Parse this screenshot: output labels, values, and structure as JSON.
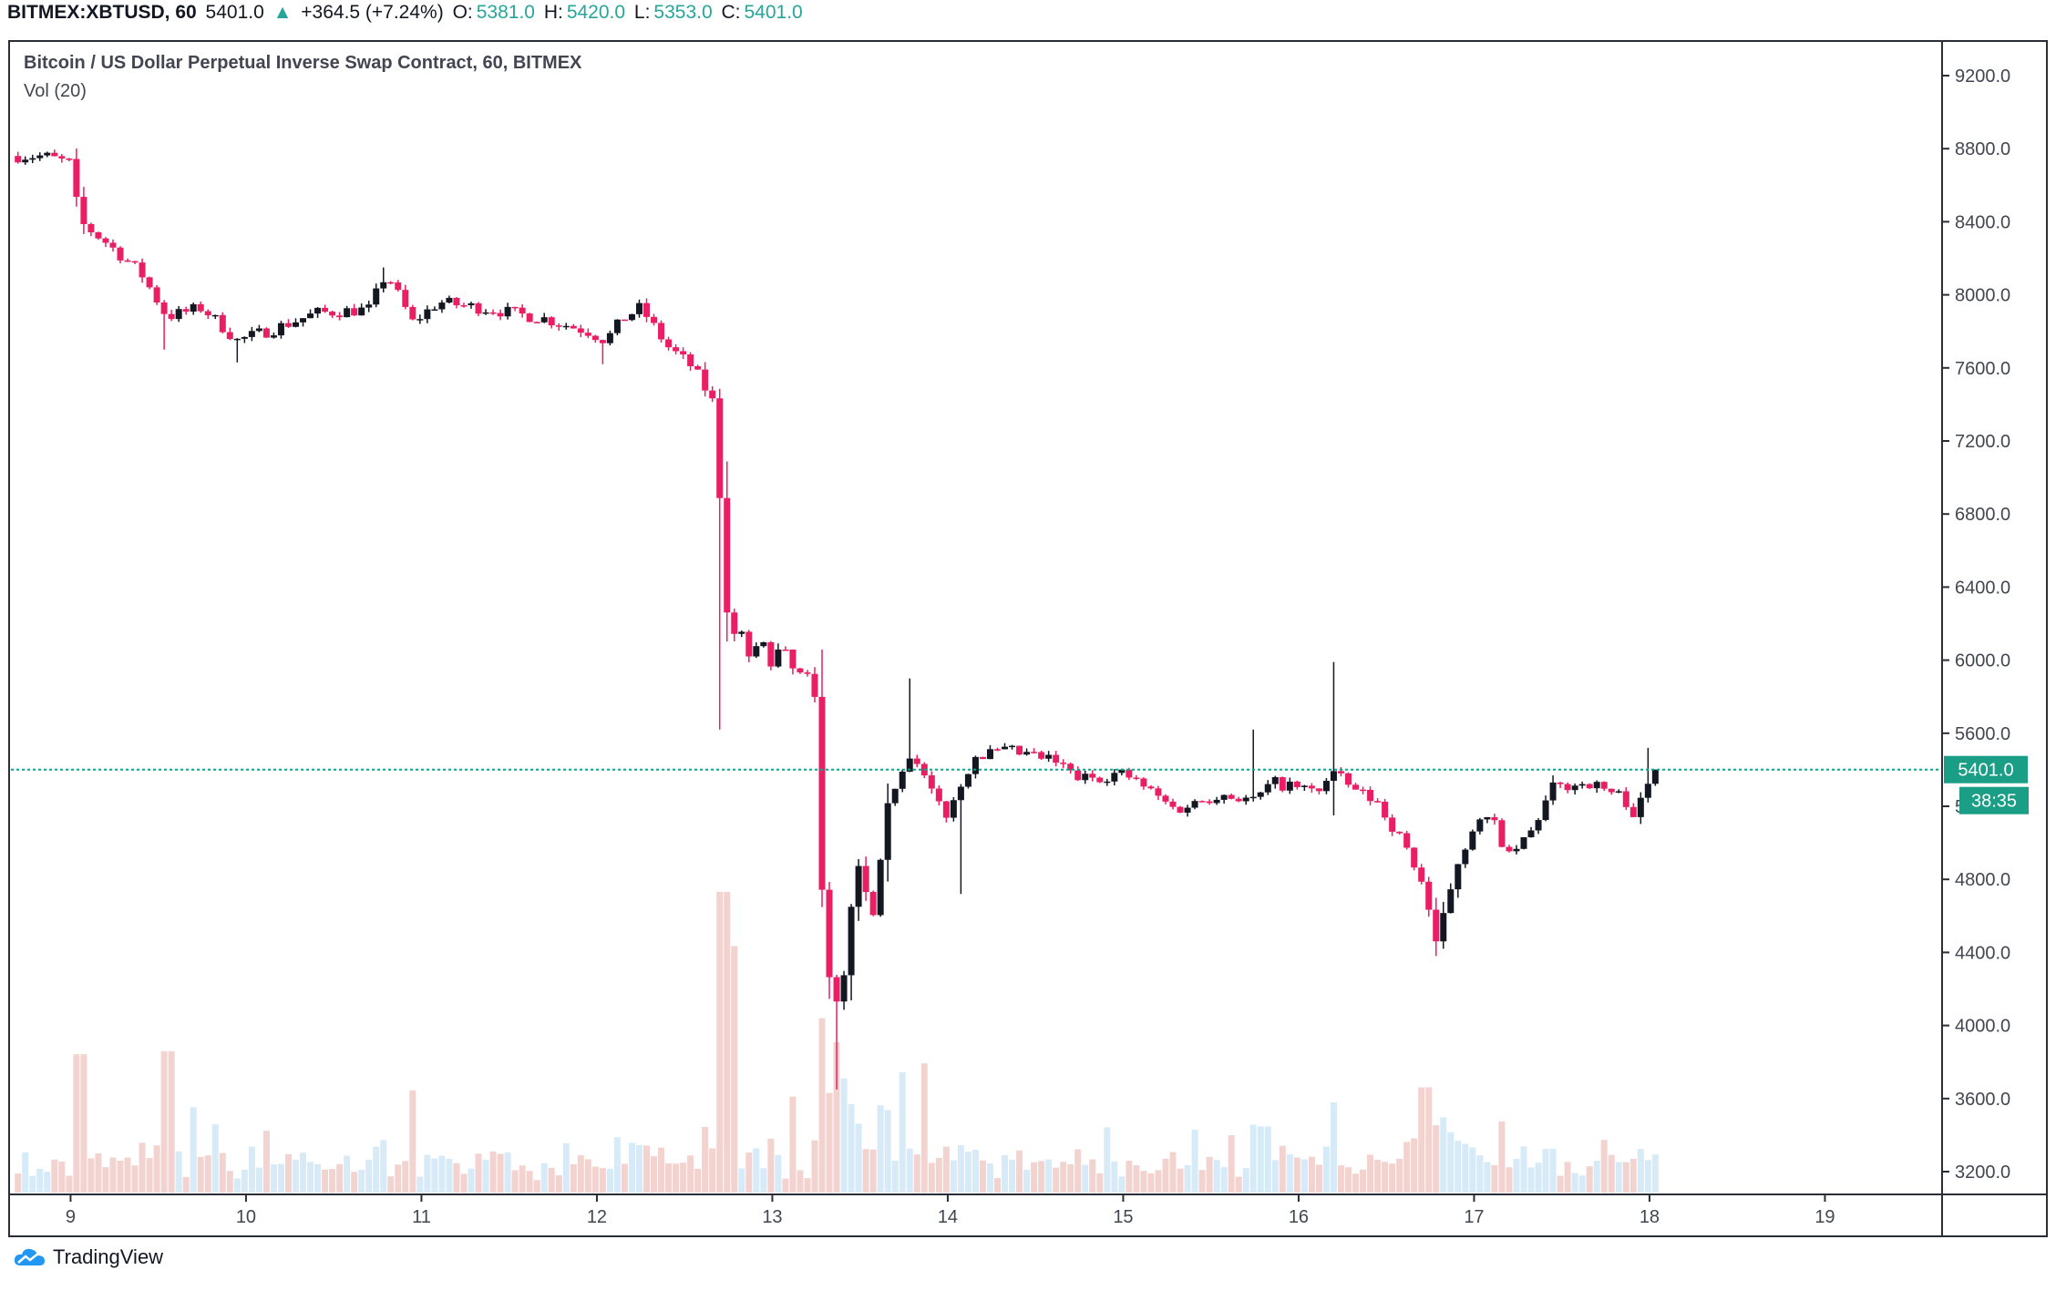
{
  "header": {
    "symbol": "BITMEX:XBTUSD, 60",
    "last": "5401.0",
    "change": "+364.5 (+7.24%)",
    "open_label": "O:",
    "open": "5381.0",
    "high_label": "H:",
    "high": "5420.0",
    "low_label": "L:",
    "low": "5353.0",
    "close_label": "C:",
    "close": "5401.0"
  },
  "legend": {
    "title": "Bitcoin / US Dollar Perpetual Inverse Swap Contract, 60, BITMEX",
    "volume": "Vol (20)"
  },
  "price_tag": {
    "value": "5401.0",
    "countdown": "38:35"
  },
  "brand": {
    "name": "TradingView"
  },
  "colors": {
    "up": "#131722",
    "down": "#e91e63",
    "vol_up": "#d6eaf8",
    "vol_down": "#f3d3d0",
    "tag": "#1b9e86",
    "accent": "#2196f3"
  },
  "chart_data": {
    "type": "candlestick",
    "title": "Bitcoin / US Dollar Perpetual Inverse Swap Contract, 60, BITMEX",
    "interval": "60",
    "yticks": [
      9200,
      8800,
      8400,
      8000,
      7600,
      7200,
      6800,
      6400,
      6000,
      5600,
      5200,
      4800,
      4400,
      4000,
      3600,
      3200
    ],
    "ylim": [
      3150,
      9400
    ],
    "xticks": [
      {
        "label": "9",
        "day": 9
      },
      {
        "label": "10",
        "day": 10
      },
      {
        "label": "11",
        "day": 11
      },
      {
        "label": "12",
        "day": 12
      },
      {
        "label": "13",
        "day": 13
      },
      {
        "label": "14",
        "day": 14
      },
      {
        "label": "15",
        "day": 15
      },
      {
        "label": "16",
        "day": 16
      },
      {
        "label": "17",
        "day": 17
      },
      {
        "label": "18",
        "day": 18
      },
      {
        "label": "19",
        "day": 19
      }
    ],
    "xlim": [
      8.67,
      19.7
    ],
    "last_price": 5401,
    "series": [
      {
        "name": "Vol (20)",
        "type": "volume"
      }
    ],
    "anchors": [
      {
        "day": 8.7,
        "p": 8760
      },
      {
        "day": 8.85,
        "p": 8760
      },
      {
        "day": 9.0,
        "p": 8720
      },
      {
        "day": 9.05,
        "p": 8400
      },
      {
        "day": 9.2,
        "p": 8290
      },
      {
        "day": 9.4,
        "p": 8120
      },
      {
        "day": 9.55,
        "p": 7880
      },
      {
        "day": 9.75,
        "p": 7930
      },
      {
        "day": 9.95,
        "p": 7750
      },
      {
        "day": 10.15,
        "p": 7810
      },
      {
        "day": 10.4,
        "p": 7900
      },
      {
        "day": 10.7,
        "p": 7920
      },
      {
        "day": 10.8,
        "p": 8120
      },
      {
        "day": 10.95,
        "p": 7850
      },
      {
        "day": 11.1,
        "p": 7960
      },
      {
        "day": 11.4,
        "p": 7920
      },
      {
        "day": 11.7,
        "p": 7870
      },
      {
        "day": 11.95,
        "p": 7800
      },
      {
        "day": 12.05,
        "p": 7750
      },
      {
        "day": 12.15,
        "p": 7870
      },
      {
        "day": 12.25,
        "p": 7930
      },
      {
        "day": 12.4,
        "p": 7720
      },
      {
        "day": 12.55,
        "p": 7600
      },
      {
        "day": 12.68,
        "p": 7380
      },
      {
        "day": 12.73,
        "p": 6200
      },
      {
        "day": 12.9,
        "p": 6000
      },
      {
        "day": 13.0,
        "p": 6060
      },
      {
        "day": 13.1,
        "p": 5950
      },
      {
        "day": 13.24,
        "p": 5800
      },
      {
        "day": 13.3,
        "p": 4450
      },
      {
        "day": 13.38,
        "p": 4000
      },
      {
        "day": 13.48,
        "p": 4850
      },
      {
        "day": 13.58,
        "p": 4550
      },
      {
        "day": 13.68,
        "p": 5300
      },
      {
        "day": 13.78,
        "p": 5550
      },
      {
        "day": 13.88,
        "p": 5300
      },
      {
        "day": 14.0,
        "p": 5150
      },
      {
        "day": 14.15,
        "p": 5480
      },
      {
        "day": 14.35,
        "p": 5500
      },
      {
        "day": 14.6,
        "p": 5450
      },
      {
        "day": 14.75,
        "p": 5350
      },
      {
        "day": 15.0,
        "p": 5380
      },
      {
        "day": 15.1,
        "p": 5320
      },
      {
        "day": 15.3,
        "p": 5180
      },
      {
        "day": 15.55,
        "p": 5270
      },
      {
        "day": 15.75,
        "p": 5230
      },
      {
        "day": 15.85,
        "p": 5330
      },
      {
        "day": 16.1,
        "p": 5280
      },
      {
        "day": 16.2,
        "p": 5380
      },
      {
        "day": 16.3,
        "p": 5300
      },
      {
        "day": 16.45,
        "p": 5220
      },
      {
        "day": 16.62,
        "p": 4960
      },
      {
        "day": 16.72,
        "p": 4750
      },
      {
        "day": 16.78,
        "p": 4420
      },
      {
        "day": 16.9,
        "p": 4880
      },
      {
        "day": 17.0,
        "p": 5100
      },
      {
        "day": 17.1,
        "p": 5130
      },
      {
        "day": 17.2,
        "p": 4920
      },
      {
        "day": 17.32,
        "p": 5050
      },
      {
        "day": 17.45,
        "p": 5300
      },
      {
        "day": 17.65,
        "p": 5330
      },
      {
        "day": 17.85,
        "p": 5250
      },
      {
        "day": 17.92,
        "p": 5150
      },
      {
        "day": 18.0,
        "p": 5330
      },
      {
        "day": 18.07,
        "p": 5401
      }
    ],
    "spikes": [
      {
        "day": 9.53,
        "low": 7700
      },
      {
        "day": 9.95,
        "low": 7630
      },
      {
        "day": 10.8,
        "high": 8150
      },
      {
        "day": 12.05,
        "low": 7620
      },
      {
        "day": 12.72,
        "high": 7350,
        "low": 5620
      },
      {
        "day": 13.38,
        "low": 3650
      },
      {
        "day": 13.8,
        "high": 5900
      },
      {
        "day": 14.08,
        "low": 4720
      },
      {
        "day": 16.2,
        "high": 5990,
        "low": 5150
      },
      {
        "day": 16.78,
        "low": 4380
      },
      {
        "day": 17.98,
        "high": 5520
      },
      {
        "day": 15.75,
        "high": 5620
      }
    ],
    "volume_spikes": [
      {
        "day": 12.72,
        "v": 1.0
      },
      {
        "day": 12.76,
        "v": 0.82
      },
      {
        "day": 13.28,
        "v": 0.58
      },
      {
        "day": 13.35,
        "v": 0.5
      },
      {
        "day": 13.42,
        "v": 0.38
      },
      {
        "day": 13.75,
        "v": 0.4
      },
      {
        "day": 13.85,
        "v": 0.43
      },
      {
        "day": 9.05,
        "v": 0.46
      },
      {
        "day": 9.55,
        "v": 0.47
      },
      {
        "day": 10.95,
        "v": 0.34
      },
      {
        "day": 16.2,
        "v": 0.3
      },
      {
        "day": 16.72,
        "v": 0.35
      },
      {
        "day": 16.82,
        "v": 0.25
      },
      {
        "day": 15.8,
        "v": 0.22
      }
    ]
  }
}
